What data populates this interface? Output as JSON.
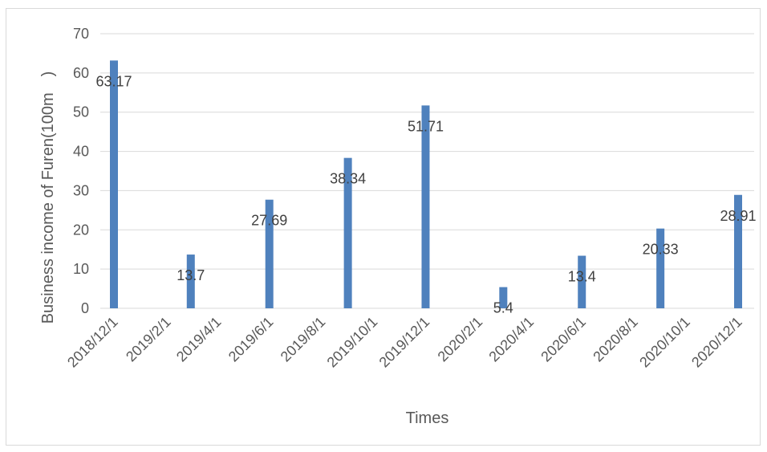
{
  "chart_data": {
    "type": "bar",
    "xlabel": "Times",
    "ylabel": "Business income of Furen(100m　)",
    "ylim": [
      0,
      70
    ],
    "yticks": [
      0,
      10,
      20,
      30,
      40,
      50,
      60,
      70
    ],
    "xticks": [
      "2018/12/1",
      "2019/2/1",
      "2019/4/1",
      "2019/6/1",
      "2019/8/1",
      "2019/10/1",
      "2019/12/1",
      "2020/2/1",
      "2020/4/1",
      "2020/6/1",
      "2020/8/1",
      "2020/10/1",
      "2020/12/1"
    ],
    "x": [
      "2018/12/1",
      "2019/3/1",
      "2019/6/1",
      "2019/9/1",
      "2019/12/1",
      "2020/3/1",
      "2020/6/1",
      "2020/9/1",
      "2020/12/1"
    ],
    "values": [
      63.17,
      13.7,
      27.69,
      38.34,
      51.71,
      5.4,
      13.4,
      20.33,
      28.91
    ],
    "data_labels": [
      "63.17",
      "13.7",
      "27.69",
      "38.34",
      "51.71",
      "5.4",
      "13.4",
      "20.33",
      "28.91"
    ],
    "grid": true,
    "legend": "none",
    "colors": {
      "bar": "#4f81bd",
      "grid": "#d9d9d9",
      "text": "#595959",
      "label": "#404040"
    }
  }
}
